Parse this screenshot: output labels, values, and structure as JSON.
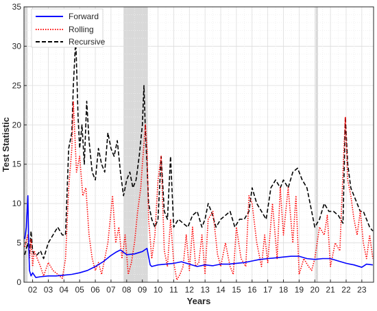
{
  "chart_data": {
    "type": "line",
    "xlabel": "Years",
    "ylabel": "Test Statistic",
    "xlim": [
      2001.45,
      2023.75
    ],
    "ylim": [
      0,
      35
    ],
    "x_ticks": [
      2002,
      2003,
      2004,
      2005,
      2006,
      2007,
      2008,
      2009,
      2010,
      2011,
      2012,
      2013,
      2014,
      2015,
      2016,
      2017,
      2018,
      2019,
      2020,
      2021,
      2022,
      2023
    ],
    "x_tick_labels": [
      "02",
      "03",
      "04",
      "05",
      "06",
      "07",
      "08",
      "09",
      "10",
      "11",
      "12",
      "13",
      "14",
      "15",
      "16",
      "17",
      "18",
      "19",
      "20",
      "21",
      "22",
      "23"
    ],
    "y_ticks": [
      0,
      5,
      10,
      15,
      20,
      25,
      30,
      35
    ],
    "grid": true,
    "legend_position": "top-left",
    "shaded_periods": [
      [
        2001.45,
        2001.68
      ],
      [
        2007.8,
        2009.35
      ],
      [
        2020.05,
        2020.2
      ]
    ],
    "series": [
      {
        "name": "Forward",
        "color": "#0000FF",
        "style": "solid",
        "x": [
          2001.5,
          2001.6,
          2001.7,
          2001.75,
          2001.8,
          2001.9,
          2002.0,
          2002.2,
          2002.5,
          2003.0,
          2003.5,
          2004.0,
          2004.5,
          2005.0,
          2005.5,
          2006.0,
          2006.5,
          2007.0,
          2007.3,
          2007.6,
          2008.0,
          2008.5,
          2009.0,
          2009.3,
          2009.5,
          2009.6,
          2010.0,
          2010.5,
          2011.0,
          2011.5,
          2012.0,
          2012.5,
          2013.0,
          2013.5,
          2014.0,
          2014.5,
          2015.0,
          2015.5,
          2016.0,
          2016.5,
          2017.0,
          2017.5,
          2018.0,
          2018.5,
          2019.0,
          2019.5,
          2020.0,
          2020.5,
          2021.0,
          2021.5,
          2022.0,
          2022.5,
          2023.0,
          2023.3,
          2023.7
        ],
        "y": [
          5.5,
          7.0,
          11.0,
          5.0,
          1.5,
          0.8,
          1.2,
          0.6,
          0.7,
          0.8,
          0.8,
          0.9,
          1.0,
          1.2,
          1.5,
          2.0,
          2.6,
          3.4,
          3.8,
          4.1,
          3.5,
          3.6,
          3.9,
          4.3,
          2.2,
          2.0,
          2.2,
          2.3,
          2.4,
          2.6,
          2.3,
          2.0,
          2.2,
          2.1,
          2.3,
          2.3,
          2.4,
          2.5,
          2.7,
          2.9,
          3.0,
          3.1,
          3.2,
          3.3,
          3.3,
          3.0,
          2.9,
          3.0,
          3.0,
          2.7,
          2.4,
          2.2,
          1.9,
          2.3,
          2.2
        ]
      },
      {
        "name": "Rolling",
        "color": "#FF0000",
        "style": "dotted",
        "x": [
          2001.5,
          2001.7,
          2001.8,
          2001.9,
          2002.0,
          2002.1,
          2002.3,
          2002.5,
          2002.7,
          2003.0,
          2003.3,
          2003.6,
          2003.9,
          2004.1,
          2004.3,
          2004.5,
          2004.6,
          2004.8,
          2005.0,
          2005.2,
          2005.4,
          2005.6,
          2005.8,
          2006.0,
          2006.2,
          2006.4,
          2006.6,
          2006.8,
          2007.0,
          2007.1,
          2007.3,
          2007.5,
          2007.7,
          2007.9,
          2008.1,
          2008.3,
          2008.5,
          2008.7,
          2008.9,
          2009.0,
          2009.2,
          2009.3,
          2009.4,
          2009.6,
          2009.8,
          2010.0,
          2010.2,
          2010.4,
          2010.6,
          2010.8,
          2011.0,
          2011.2,
          2011.4,
          2011.6,
          2011.8,
          2012.0,
          2012.2,
          2012.4,
          2012.6,
          2012.8,
          2013.0,
          2013.2,
          2013.5,
          2013.8,
          2014.0,
          2014.3,
          2014.6,
          2014.8,
          2015.0,
          2015.3,
          2015.6,
          2015.8,
          2016.0,
          2016.3,
          2016.6,
          2016.8,
          2017.0,
          2017.3,
          2017.6,
          2017.8,
          2018.0,
          2018.3,
          2018.6,
          2018.8,
          2019.0,
          2019.3,
          2019.6,
          2019.8,
          2020.0,
          2020.3,
          2020.6,
          2020.8,
          2021.0,
          2021.3,
          2021.6,
          2021.8,
          2021.95,
          2022.1,
          2022.3,
          2022.5,
          2022.7,
          2022.9,
          2023.1,
          2023.3,
          2023.5,
          2023.7
        ],
        "y": [
          4.5,
          6.0,
          3.0,
          5.5,
          2.0,
          4.0,
          3.0,
          2.0,
          0.8,
          2.5,
          1.5,
          1.0,
          0.5,
          3.0,
          12.0,
          17.0,
          23.0,
          14.0,
          16.0,
          11.0,
          12.0,
          6.0,
          3.0,
          1.5,
          2.5,
          1.0,
          3.0,
          5.0,
          9.0,
          11.0,
          5.0,
          7.0,
          3.0,
          6.0,
          1.0,
          2.5,
          5.0,
          9.0,
          12.0,
          15.0,
          20.0,
          17.0,
          8.0,
          3.0,
          6.0,
          13.0,
          16.0,
          4.0,
          2.0,
          8.0,
          2.5,
          0.3,
          1.0,
          2.0,
          6.0,
          1.5,
          7.0,
          2.0,
          2.5,
          6.0,
          1.0,
          8.0,
          9.0,
          3.5,
          2.0,
          5.0,
          2.0,
          1.0,
          7.0,
          3.0,
          2.0,
          11.0,
          10.0,
          5.0,
          2.0,
          6.0,
          2.5,
          10.0,
          3.0,
          12.0,
          6.0,
          12.0,
          5.0,
          11.0,
          1.0,
          3.0,
          2.0,
          1.5,
          3.0,
          7.0,
          6.0,
          8.5,
          2.0,
          5.0,
          4.0,
          14.0,
          21.0,
          13.0,
          11.0,
          8.0,
          6.0,
          9.0,
          5.0,
          3.0,
          6.0,
          3.0
        ]
      },
      {
        "name": "Recursive",
        "color": "#000000",
        "style": "dashed",
        "x": [
          2001.5,
          2001.7,
          2001.8,
          2001.9,
          2002.0,
          2002.1,
          2002.3,
          2002.5,
          2002.7,
          2003.0,
          2003.3,
          2003.6,
          2003.9,
          2004.1,
          2004.3,
          2004.5,
          2004.6,
          2004.75,
          2004.9,
          2005.0,
          2005.15,
          2005.3,
          2005.45,
          2005.6,
          2005.8,
          2006.0,
          2006.2,
          2006.4,
          2006.6,
          2006.8,
          2007.0,
          2007.2,
          2007.4,
          2007.6,
          2007.8,
          2008.0,
          2008.2,
          2008.4,
          2008.6,
          2008.8,
          2009.0,
          2009.1,
          2009.2,
          2009.3,
          2009.4,
          2009.6,
          2009.8,
          2010.0,
          2010.2,
          2010.4,
          2010.6,
          2010.8,
          2011.0,
          2011.3,
          2011.6,
          2011.9,
          2012.2,
          2012.5,
          2012.8,
          2013.0,
          2013.2,
          2013.4,
          2013.7,
          2014.0,
          2014.3,
          2014.6,
          2014.9,
          2015.2,
          2015.5,
          2015.8,
          2016.0,
          2016.3,
          2016.6,
          2016.9,
          2017.2,
          2017.5,
          2017.8,
          2018.0,
          2018.3,
          2018.6,
          2018.9,
          2019.2,
          2019.5,
          2019.8,
          2020.0,
          2020.3,
          2020.6,
          2020.9,
          2021.2,
          2021.5,
          2021.8,
          2021.95,
          2022.1,
          2022.3,
          2022.5,
          2022.7,
          2022.9,
          2023.1,
          2023.3,
          2023.5,
          2023.7
        ],
        "y": [
          3.5,
          5.0,
          3.5,
          6.5,
          4.0,
          3.5,
          3.5,
          4.0,
          3.0,
          5.0,
          6.0,
          7.0,
          6.0,
          6.0,
          17.0,
          19.0,
          25.0,
          31.0,
          21.0,
          17.0,
          20.0,
          15.0,
          23.0,
          18.0,
          14.0,
          13.0,
          17.0,
          15.0,
          14.0,
          19.0,
          17.0,
          16.0,
          18.0,
          14.0,
          11.0,
          13.0,
          14.0,
          12.0,
          13.0,
          16.0,
          20.0,
          25.0,
          19.0,
          15.0,
          10.0,
          8.0,
          7.0,
          8.0,
          16.0,
          9.0,
          8.0,
          16.0,
          7.0,
          8.0,
          7.5,
          7.0,
          8.5,
          9.0,
          7.0,
          8.0,
          10.0,
          9.0,
          7.0,
          8.0,
          8.5,
          9.0,
          7.0,
          8.0,
          8.0,
          9.0,
          12.0,
          10.0,
          9.0,
          8.0,
          12.0,
          13.0,
          12.0,
          13.0,
          12.0,
          14.0,
          14.5,
          13.0,
          12.0,
          9.0,
          7.0,
          8.0,
          10.0,
          9.0,
          9.0,
          8.5,
          7.5,
          21.0,
          15.0,
          12.0,
          11.0,
          10.0,
          9.0,
          9.0,
          8.0,
          7.0,
          6.5
        ]
      }
    ]
  }
}
